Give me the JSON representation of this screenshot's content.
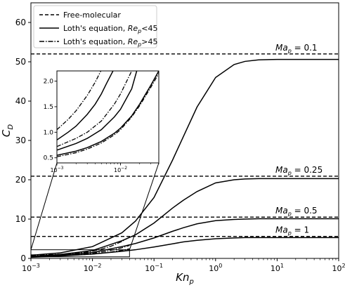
{
  "chart_data": {
    "type": "line",
    "xscale": "log",
    "xlim": [
      0.001,
      100
    ],
    "ylim": [
      0,
      65
    ],
    "xlabel_main": "Kn",
    "xlabel_sub": "p",
    "ylabel_main": "C",
    "ylabel_sub": "D",
    "x_ticks": [
      {
        "value": 0.001,
        "base": "10",
        "exp": "−3"
      },
      {
        "value": 0.01,
        "base": "10",
        "exp": "−2"
      },
      {
        "value": 0.1,
        "base": "10",
        "exp": "−1"
      },
      {
        "value": 1,
        "base": "10",
        "exp": "0"
      },
      {
        "value": 10,
        "base": "10",
        "exp": "1"
      },
      {
        "value": 100,
        "base": "10",
        "exp": "2"
      }
    ],
    "y_ticks": [
      0,
      10,
      20,
      30,
      40,
      50,
      60
    ],
    "grid": false,
    "legend": {
      "placement": "top-left",
      "entries": [
        {
          "style": "dashed",
          "label": "Free-molecular",
          "label_sub": "",
          "label_after": ""
        },
        {
          "style": "solid",
          "label": "Loth's equation, Re",
          "label_sub": "p",
          "label_after": "<45"
        },
        {
          "style": "dashdot",
          "label": "Loth's equation, Re",
          "label_sub": "p",
          "label_after": ">45"
        }
      ]
    },
    "free_molecular": [
      {
        "ma_label": "Ma",
        "ma_sub": "p",
        "ma_value": " = 0.1",
        "cd": 52.0
      },
      {
        "ma_label": "Ma",
        "ma_sub": "p",
        "ma_value": " = 0.25",
        "cd": 20.9
      },
      {
        "ma_label": "Ma",
        "ma_sub": "p",
        "ma_value": " = 0.5",
        "cd": 10.5
      },
      {
        "ma_label": "Ma",
        "ma_sub": "p",
        "ma_value": " = 1",
        "cd": 5.6
      }
    ],
    "solid_series": [
      {
        "name": "Ma_p = 0.1",
        "x": [
          0.001,
          0.003,
          0.01,
          0.03,
          0.05,
          0.1,
          0.2,
          0.3,
          0.5,
          1,
          2,
          3,
          5,
          10,
          30,
          100
        ],
        "y": [
          0.8,
          1.4,
          3.0,
          6.5,
          9.5,
          15.5,
          25.0,
          31.0,
          38.5,
          46.0,
          49.3,
          50.1,
          50.5,
          50.6,
          50.6,
          50.6
        ]
      },
      {
        "name": "Ma_p = 0.25",
        "x": [
          0.001,
          0.003,
          0.01,
          0.03,
          0.05,
          0.1,
          0.2,
          0.3,
          0.5,
          1,
          2,
          3,
          5,
          10,
          30,
          100
        ],
        "y": [
          0.5,
          1.0,
          2.0,
          4.5,
          6.0,
          9.0,
          12.8,
          14.8,
          17.0,
          19.2,
          20.0,
          20.2,
          20.3,
          20.3,
          20.3,
          20.3
        ]
      },
      {
        "name": "Ma_p = 0.5",
        "x": [
          0.001,
          0.003,
          0.01,
          0.03,
          0.05,
          0.1,
          0.2,
          0.3,
          0.5,
          1,
          2,
          3,
          5,
          10,
          30,
          100
        ],
        "y": [
          0.4,
          0.8,
          1.5,
          3.0,
          3.8,
          5.2,
          6.9,
          7.8,
          8.8,
          9.6,
          9.9,
          10.0,
          10.1,
          10.1,
          10.1,
          10.1
        ]
      },
      {
        "name": "Ma_p = 1",
        "x": [
          0.001,
          0.003,
          0.01,
          0.03,
          0.05,
          0.1,
          0.2,
          0.3,
          0.5,
          1,
          2,
          3,
          5,
          10,
          30,
          100
        ],
        "y": [
          0.3,
          0.6,
          1.1,
          1.8,
          2.2,
          2.9,
          3.7,
          4.2,
          4.6,
          5.0,
          5.2,
          5.3,
          5.3,
          5.3,
          5.3,
          5.3
        ]
      }
    ],
    "dashdot_series": [
      {
        "name": "Ma_p = 0.1",
        "x": [
          0.001,
          0.002,
          0.003,
          0.005,
          0.008,
          0.01,
          0.015,
          0.02,
          0.03,
          0.04
        ],
        "y": [
          0.88,
          0.95,
          1.05,
          1.25,
          1.6,
          1.85,
          2.5,
          3.1,
          4.3,
          5.4
        ]
      },
      {
        "name": "Ma_p = 0.25",
        "x": [
          0.001,
          0.002,
          0.003,
          0.005,
          0.008,
          0.01,
          0.015,
          0.02,
          0.03,
          0.04
        ],
        "y": [
          0.65,
          0.75,
          0.85,
          1.0,
          1.2,
          1.35,
          1.7,
          2.05,
          2.7,
          3.3
        ]
      },
      {
        "name": "Ma_p = 0.5",
        "x": [
          0.001,
          0.002,
          0.003,
          0.005,
          0.008,
          0.01,
          0.015,
          0.02,
          0.03,
          0.04
        ],
        "y": [
          0.55,
          0.63,
          0.72,
          0.85,
          1.0,
          1.1,
          1.38,
          1.62,
          2.05,
          2.45
        ]
      }
    ],
    "inset": {
      "xlim": [
        0.001,
        0.04
      ],
      "ylim": [
        0.4,
        2.2
      ],
      "x_ticks": [
        {
          "value": 0.001,
          "base": "10",
          "exp": "−3"
        },
        {
          "value": 0.01,
          "base": "10",
          "exp": "−2"
        }
      ],
      "y_ticks": [
        "0.5",
        "1.0",
        "1.5",
        "2.0"
      ],
      "y_tick_values": [
        0.5,
        1.0,
        1.5,
        2.0
      ],
      "solid_series": [
        {
          "x": [
            0.001,
            0.0015,
            0.002,
            0.003,
            0.004,
            0.005,
            0.006,
            0.008
          ],
          "y": [
            0.85,
            1.0,
            1.12,
            1.35,
            1.55,
            1.75,
            1.95,
            2.25
          ]
        },
        {
          "x": [
            0.001,
            0.002,
            0.003,
            0.005,
            0.008,
            0.01,
            0.015,
            0.018
          ],
          "y": [
            0.65,
            0.78,
            0.88,
            1.05,
            1.3,
            1.45,
            1.85,
            2.2
          ]
        },
        {
          "x": [
            0.001,
            0.002,
            0.003,
            0.005,
            0.008,
            0.01,
            0.015,
            0.02,
            0.03,
            0.04
          ],
          "y": [
            0.55,
            0.63,
            0.7,
            0.82,
            0.98,
            1.08,
            1.32,
            1.55,
            1.92,
            2.2
          ]
        }
      ],
      "dashdot_series": [
        {
          "x": [
            0.001,
            0.0015,
            0.002,
            0.003,
            0.004,
            0.005
          ],
          "y": [
            1.05,
            1.25,
            1.42,
            1.72,
            1.98,
            2.22
          ]
        },
        {
          "x": [
            0.001,
            0.002,
            0.003,
            0.005,
            0.008,
            0.01,
            0.015
          ],
          "y": [
            0.72,
            0.88,
            1.0,
            1.22,
            1.55,
            1.75,
            2.2
          ]
        },
        {
          "x": [
            0.001,
            0.002,
            0.003,
            0.005,
            0.008,
            0.01,
            0.015,
            0.02,
            0.03,
            0.04
          ],
          "y": [
            0.52,
            0.6,
            0.67,
            0.79,
            0.95,
            1.05,
            1.3,
            1.52,
            1.88,
            2.15
          ]
        }
      ]
    }
  }
}
